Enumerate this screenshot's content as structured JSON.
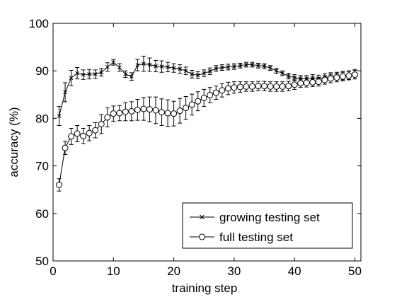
{
  "chart_data": {
    "type": "line",
    "xlabel": "training step",
    "ylabel": "accuracy (%)",
    "xlim": [
      0,
      51
    ],
    "ylim": [
      50,
      100
    ],
    "xticks": [
      0,
      10,
      20,
      30,
      40,
      50
    ],
    "yticks": [
      50,
      60,
      70,
      80,
      90,
      100
    ],
    "grid": false,
    "legend_position": "bottom-right",
    "series": [
      {
        "name": "growing testing set",
        "marker": "x",
        "x": [
          1,
          2,
          3,
          4,
          5,
          6,
          7,
          8,
          9,
          10,
          11,
          12,
          13,
          14,
          15,
          16,
          17,
          18,
          19,
          20,
          21,
          22,
          23,
          24,
          25,
          26,
          27,
          28,
          29,
          30,
          31,
          32,
          33,
          34,
          35,
          36,
          37,
          38,
          39,
          40,
          41,
          42,
          43,
          44,
          45,
          46,
          47,
          48,
          49,
          50
        ],
        "y": [
          80.5,
          85.5,
          88.5,
          89.5,
          89.2,
          89.3,
          89.3,
          89.7,
          90.8,
          91.8,
          90.7,
          89.3,
          88.8,
          91.2,
          91.5,
          91.3,
          91.0,
          90.9,
          90.8,
          90.6,
          90.4,
          90.0,
          89.3,
          89.1,
          89.5,
          89.9,
          90.5,
          90.7,
          90.8,
          90.9,
          91.1,
          91.3,
          91.3,
          91.1,
          91.0,
          90.6,
          90.0,
          89.5,
          88.9,
          88.6,
          88.4,
          88.4,
          88.5,
          88.4,
          88.6,
          88.8,
          88.9,
          89.0,
          89.1,
          89.3
        ],
        "err": [
          2.0,
          2.0,
          1.6,
          1.2,
          1.0,
          1.0,
          0.9,
          0.8,
          0.9,
          0.6,
          0.8,
          0.7,
          0.8,
          1.2,
          1.6,
          1.4,
          1.2,
          1.2,
          1.0,
          0.9,
          0.9,
          0.8,
          0.8,
          0.7,
          0.7,
          0.7,
          0.6,
          0.6,
          0.6,
          0.6,
          0.5,
          0.5,
          0.5,
          0.5,
          0.5,
          0.5,
          0.5,
          0.5,
          0.6,
          0.6,
          0.6,
          0.6,
          0.7,
          0.7,
          0.8,
          0.8,
          0.8,
          0.9,
          0.9,
          1.0
        ]
      },
      {
        "name": "full testing set",
        "marker": "o",
        "x": [
          1,
          2,
          3,
          4,
          5,
          6,
          7,
          8,
          9,
          10,
          11,
          12,
          13,
          14,
          15,
          16,
          17,
          18,
          19,
          20,
          21,
          22,
          23,
          24,
          25,
          26,
          27,
          28,
          29,
          30,
          31,
          32,
          33,
          34,
          35,
          36,
          37,
          38,
          39,
          40,
          41,
          42,
          43,
          44,
          45,
          46,
          47,
          48,
          49,
          50
        ],
        "y": [
          66.0,
          73.8,
          76.2,
          76.8,
          76.3,
          76.9,
          77.5,
          78.8,
          80.2,
          81.0,
          81.1,
          81.4,
          81.5,
          81.8,
          82.0,
          81.9,
          81.7,
          81.3,
          81.1,
          81.0,
          81.6,
          82.2,
          82.9,
          83.6,
          84.3,
          84.9,
          85.4,
          85.9,
          86.3,
          86.5,
          86.6,
          86.7,
          86.7,
          86.8,
          86.8,
          86.7,
          86.7,
          86.7,
          86.8,
          87.1,
          87.4,
          87.5,
          87.6,
          87.7,
          88.1,
          88.4,
          88.6,
          88.8,
          89.0,
          89.2
        ],
        "err": [
          1.3,
          1.4,
          1.7,
          1.7,
          1.6,
          1.6,
          1.6,
          2.0,
          2.0,
          1.6,
          1.6,
          1.9,
          2.0,
          2.2,
          2.4,
          2.6,
          2.8,
          2.8,
          2.8,
          2.6,
          2.6,
          2.4,
          2.2,
          2.0,
          1.8,
          1.6,
          1.4,
          1.4,
          1.3,
          1.2,
          1.1,
          1.0,
          1.0,
          1.0,
          1.0,
          1.0,
          1.0,
          1.0,
          1.0,
          1.0,
          0.9,
          0.9,
          0.9,
          0.9,
          0.9,
          0.9,
          0.9,
          0.9,
          0.9,
          0.9
        ]
      }
    ]
  }
}
